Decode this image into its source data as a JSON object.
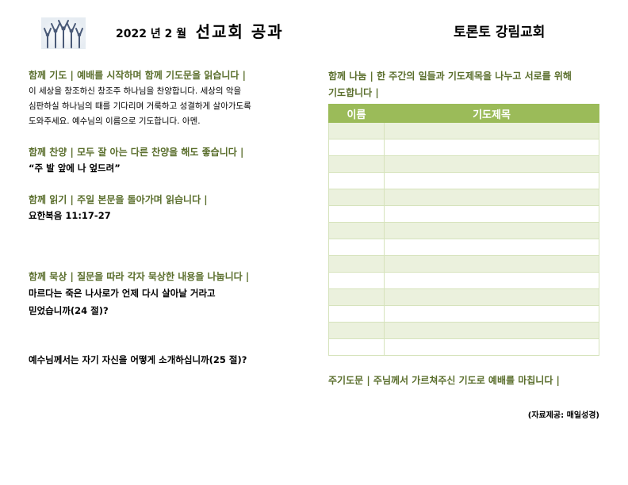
{
  "header": {
    "date": "2022 년 2 월",
    "title": "선교회 공과",
    "church": "토론토 강림교회",
    "logo_icon": "worship-people-logo-icon"
  },
  "prayer": {
    "heading": "함께 기도 | 예배를 시작하며 함께 기도문을 읽습니다 |",
    "lines": [
      "이 세상을 창조하신 창조주 하나님을 찬양합니다. 세상의 악을",
      "심판하실 하나님의 때를 기다리며 거룩하고 성결하게 살아가도록",
      "도와주세요. 예수님의 이름으로 기도합니다. 아멘."
    ]
  },
  "hymn": {
    "heading": "함께 찬양 | 모두 잘 아는 다른 찬양을 해도 좋습니다 |",
    "song": "“주 발 앞에 나 엎드려”"
  },
  "reading": {
    "heading": "함께 읽기 | 주일 본문을 돌아가며 읽습니다 |",
    "passage": "요한복음 11:17-27"
  },
  "meditation": {
    "heading": "함께 묵상 | 질문을 따라 각자 묵상한 내용을 나눕니다 |",
    "q1_lines": [
      "마르다는 죽은 나사로가 언제 다시 살아날 거라고",
      "믿었습니까(24 절)?"
    ],
    "q2": "예수님께서는 자기 자신을 어떻게 소개하십니까(25 절)?"
  },
  "sharing": {
    "heading_lines": [
      "함께 나눔 | 한 주간의 일들과 기도제목을 나누고 서로를 위해",
      "기도합니다 |"
    ],
    "columns": [
      "이름",
      "기도제목"
    ],
    "rows": [
      [
        "",
        ""
      ],
      [
        "",
        ""
      ],
      [
        "",
        ""
      ],
      [
        "",
        ""
      ],
      [
        "",
        ""
      ],
      [
        "",
        ""
      ],
      [
        "",
        ""
      ],
      [
        "",
        ""
      ],
      [
        "",
        ""
      ],
      [
        "",
        ""
      ],
      [
        "",
        ""
      ],
      [
        "",
        ""
      ],
      [
        "",
        ""
      ],
      [
        "",
        ""
      ]
    ]
  },
  "closing": "주기도문 | 주님께서 가르쳐주신 기도로 예배를 마칩니다 |",
  "credit": "(자료제공: 매일성경)",
  "colors": {
    "accent": "#5a6e2c",
    "table_header": "#9bbb59",
    "row_shade": "#ebf1dd"
  }
}
